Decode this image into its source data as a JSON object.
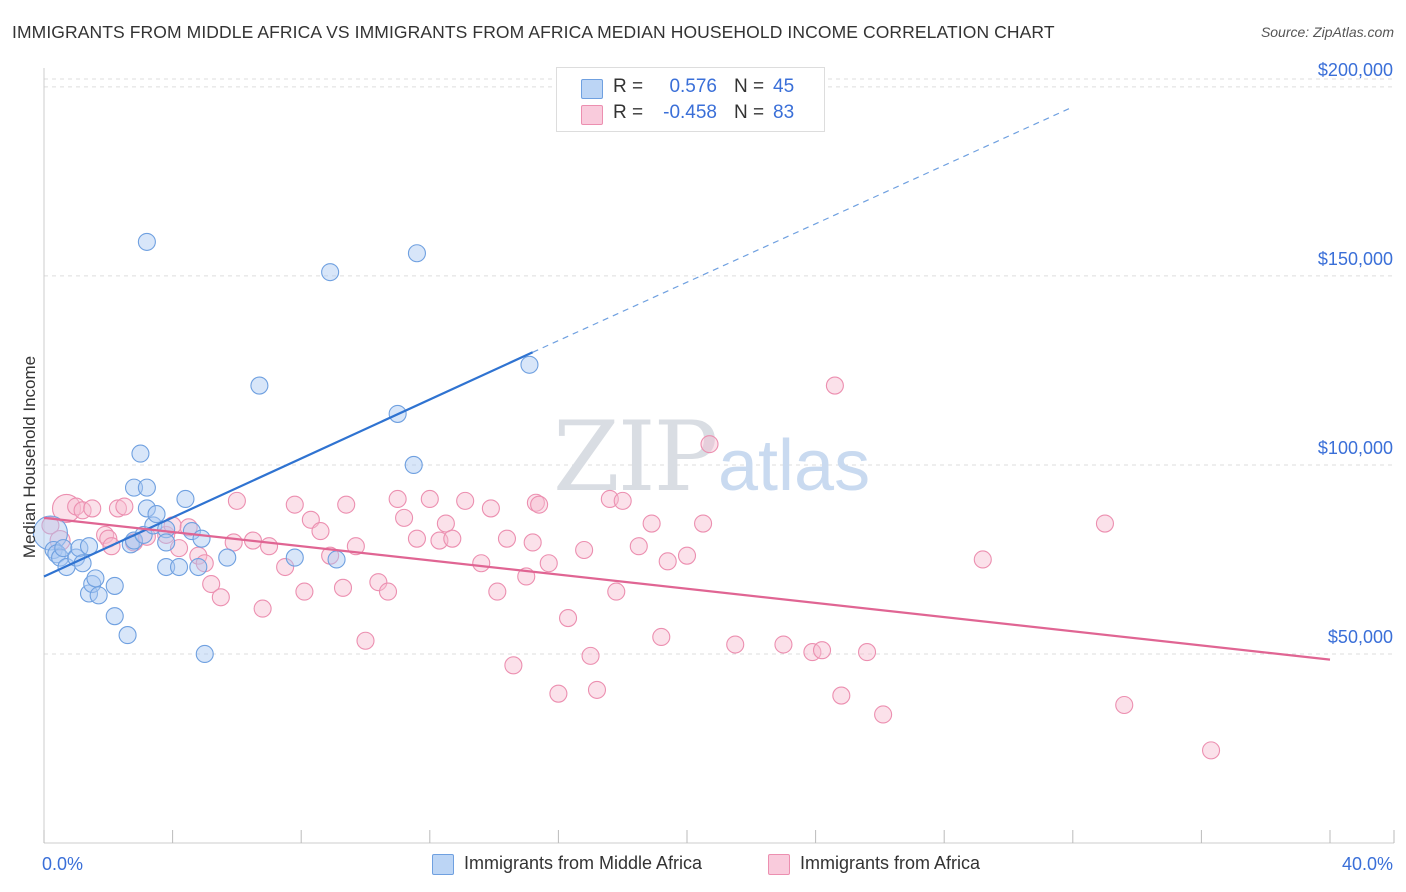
{
  "title": "IMMIGRANTS FROM MIDDLE AFRICA VS IMMIGRANTS FROM AFRICA MEDIAN HOUSEHOLD INCOME CORRELATION CHART",
  "source": "Source: ZipAtlas.com",
  "watermark": {
    "zip": "ZIP",
    "atlas": "atlas"
  },
  "legend_top": {
    "rows": [
      {
        "r_label": "R =",
        "r_value": "0.576",
        "n_label": "N =",
        "n_value": "45"
      },
      {
        "r_label": "R =",
        "r_value": "-0.458",
        "n_label": "N =",
        "n_value": "83"
      }
    ]
  },
  "colors": {
    "blue_fill": "#a9c8f2",
    "blue_stroke": "#6fa0e0",
    "blue_line": "#2f73d1",
    "pink_fill": "#f6bcd0",
    "pink_stroke": "#ec8fb0",
    "pink_line": "#e06593",
    "tick_label": "#3a6fd8",
    "grid": "#dddddd"
  },
  "chart_data": {
    "type": "scatter",
    "title": "IMMIGRANTS FROM MIDDLE AFRICA VS IMMIGRANTS FROM AFRICA MEDIAN HOUSEHOLD INCOME CORRELATION CHART",
    "xlabel": "",
    "ylabel": "Median Household Income",
    "xlim": [
      0,
      40
    ],
    "ylim": [
      0,
      205000
    ],
    "x_tick_labels": [
      "0.0%",
      "40.0%"
    ],
    "y_ticks": [
      50000,
      100000,
      150000,
      200000
    ],
    "y_tick_labels": [
      "$50,000",
      "$100,000",
      "$150,000",
      "$200,000"
    ],
    "grid": true,
    "legend_position": "bottom",
    "series": [
      {
        "name": "Immigrants from Middle Africa",
        "color": "#a9c8f2",
        "r": 0.576,
        "n": 45,
        "trend": {
          "x": [
            0.0,
            15.2
          ],
          "y": [
            70500,
            129800
          ],
          "extended_to": [
            32.0,
            194700
          ]
        },
        "points": [
          [
            0.2,
            82000
          ],
          [
            0.3,
            77500
          ],
          [
            0.4,
            76500
          ],
          [
            0.5,
            75500
          ],
          [
            0.6,
            78000
          ],
          [
            0.7,
            73000
          ],
          [
            1.0,
            75500
          ],
          [
            1.1,
            78000
          ],
          [
            1.2,
            74000
          ],
          [
            1.4,
            78500
          ],
          [
            1.4,
            66000
          ],
          [
            1.5,
            68500
          ],
          [
            1.6,
            70000
          ],
          [
            1.7,
            65500
          ],
          [
            2.2,
            68000
          ],
          [
            2.2,
            60000
          ],
          [
            2.6,
            55000
          ],
          [
            2.7,
            79000
          ],
          [
            2.8,
            80000
          ],
          [
            3.1,
            81500
          ],
          [
            3.2,
            88500
          ],
          [
            2.8,
            94000
          ],
          [
            3.0,
            103000
          ],
          [
            3.2,
            94000
          ],
          [
            3.4,
            84000
          ],
          [
            3.5,
            87000
          ],
          [
            3.8,
            83000
          ],
          [
            3.8,
            79500
          ],
          [
            3.8,
            73000
          ],
          [
            4.2,
            73000
          ],
          [
            4.4,
            91000
          ],
          [
            4.6,
            82500
          ],
          [
            4.8,
            73000
          ],
          [
            4.9,
            80500
          ],
          [
            5.0,
            50000
          ],
          [
            5.7,
            75500
          ],
          [
            6.7,
            121000
          ],
          [
            7.8,
            75500
          ],
          [
            9.1,
            75000
          ],
          [
            3.2,
            159000
          ],
          [
            8.9,
            151000
          ],
          [
            11.6,
            156000
          ],
          [
            11.0,
            113500
          ],
          [
            11.5,
            100000
          ],
          [
            15.1,
            126500
          ]
        ]
      },
      {
        "name": "Immigrants from Africa",
        "color": "#f6bcd0",
        "r": -0.458,
        "n": 83,
        "trend": {
          "x": [
            0.0,
            40.0
          ],
          "y": [
            86000,
            48500
          ]
        },
        "points": [
          [
            0.2,
            84000
          ],
          [
            0.5,
            80000
          ],
          [
            0.7,
            88500
          ],
          [
            1.0,
            89000
          ],
          [
            1.2,
            88000
          ],
          [
            1.5,
            88500
          ],
          [
            1.9,
            81500
          ],
          [
            2.0,
            80500
          ],
          [
            2.1,
            78500
          ],
          [
            2.3,
            88500
          ],
          [
            2.5,
            89000
          ],
          [
            2.8,
            79500
          ],
          [
            3.2,
            81000
          ],
          [
            3.8,
            81500
          ],
          [
            4.0,
            84000
          ],
          [
            4.2,
            78000
          ],
          [
            4.5,
            83500
          ],
          [
            4.8,
            76000
          ],
          [
            5.0,
            74000
          ],
          [
            5.2,
            68500
          ],
          [
            5.5,
            65000
          ],
          [
            6.0,
            90500
          ],
          [
            5.9,
            79500
          ],
          [
            6.5,
            80000
          ],
          [
            6.8,
            62000
          ],
          [
            7.0,
            78500
          ],
          [
            7.5,
            73000
          ],
          [
            7.8,
            89500
          ],
          [
            8.1,
            66500
          ],
          [
            8.3,
            85500
          ],
          [
            8.6,
            82500
          ],
          [
            8.9,
            76000
          ],
          [
            9.3,
            67500
          ],
          [
            9.4,
            89500
          ],
          [
            9.7,
            78500
          ],
          [
            10.0,
            53500
          ],
          [
            10.4,
            69000
          ],
          [
            10.7,
            66500
          ],
          [
            11.0,
            91000
          ],
          [
            11.2,
            86000
          ],
          [
            11.6,
            80500
          ],
          [
            12.0,
            91000
          ],
          [
            12.3,
            80000
          ],
          [
            12.5,
            84500
          ],
          [
            12.7,
            80500
          ],
          [
            13.1,
            90500
          ],
          [
            13.6,
            74000
          ],
          [
            13.9,
            88500
          ],
          [
            14.1,
            66500
          ],
          [
            14.4,
            80500
          ],
          [
            14.6,
            47000
          ],
          [
            15.0,
            70500
          ],
          [
            15.2,
            79500
          ],
          [
            15.3,
            90000
          ],
          [
            15.4,
            89500
          ],
          [
            15.7,
            74000
          ],
          [
            16.0,
            39500
          ],
          [
            16.3,
            59500
          ],
          [
            16.8,
            77500
          ],
          [
            17.0,
            49500
          ],
          [
            17.2,
            40500
          ],
          [
            17.6,
            91000
          ],
          [
            17.8,
            66500
          ],
          [
            18.0,
            90500
          ],
          [
            18.5,
            78500
          ],
          [
            18.9,
            84500
          ],
          [
            19.2,
            54500
          ],
          [
            19.4,
            74500
          ],
          [
            20.0,
            76000
          ],
          [
            20.5,
            84500
          ],
          [
            20.7,
            105500
          ],
          [
            21.5,
            52500
          ],
          [
            23.0,
            52500
          ],
          [
            23.9,
            50500
          ],
          [
            24.2,
            51000
          ],
          [
            24.6,
            121000
          ],
          [
            24.8,
            39000
          ],
          [
            25.6,
            50500
          ],
          [
            26.1,
            34000
          ],
          [
            29.2,
            75000
          ],
          [
            33.0,
            84500
          ],
          [
            33.6,
            36500
          ],
          [
            36.3,
            24500
          ]
        ]
      }
    ]
  }
}
